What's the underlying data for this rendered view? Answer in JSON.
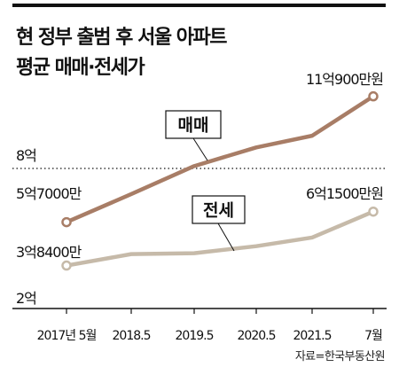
{
  "title_lines": [
    "현 정부 출범 후 서울 아파트",
    "평균 매매·전세가"
  ],
  "source": "자료=한국부동산원",
  "colors": {
    "sale": "#A87D66",
    "jeonse": "#C6BAA9",
    "axis": "#111111",
    "text": "#111111"
  },
  "chart_data": {
    "type": "line",
    "title": "현 정부 출범 후 서울 아파트 평균 매매·전세가",
    "categories": [
      "2017년 5월",
      "2018.5",
      "2019.5",
      "2020.5",
      "2021.5",
      "7월"
    ],
    "y_tick_labels": [
      "8억",
      "2억"
    ],
    "series": [
      {
        "name": "매매",
        "values": [
          5.7,
          6.9,
          8.1,
          8.9,
          9.4,
          11.09
        ],
        "start_label": "5억7000만",
        "end_label": "11억900만원"
      },
      {
        "name": "전세",
        "values": [
          3.84,
          4.33,
          4.37,
          4.67,
          5.04,
          6.15
        ],
        "start_label": "3억8400만",
        "end_label": "6억1500만원"
      }
    ],
    "reference_line": {
      "value": 8,
      "style": "dotted"
    },
    "ylim": [
      2,
      12
    ],
    "grid": false,
    "legend": "inline"
  }
}
